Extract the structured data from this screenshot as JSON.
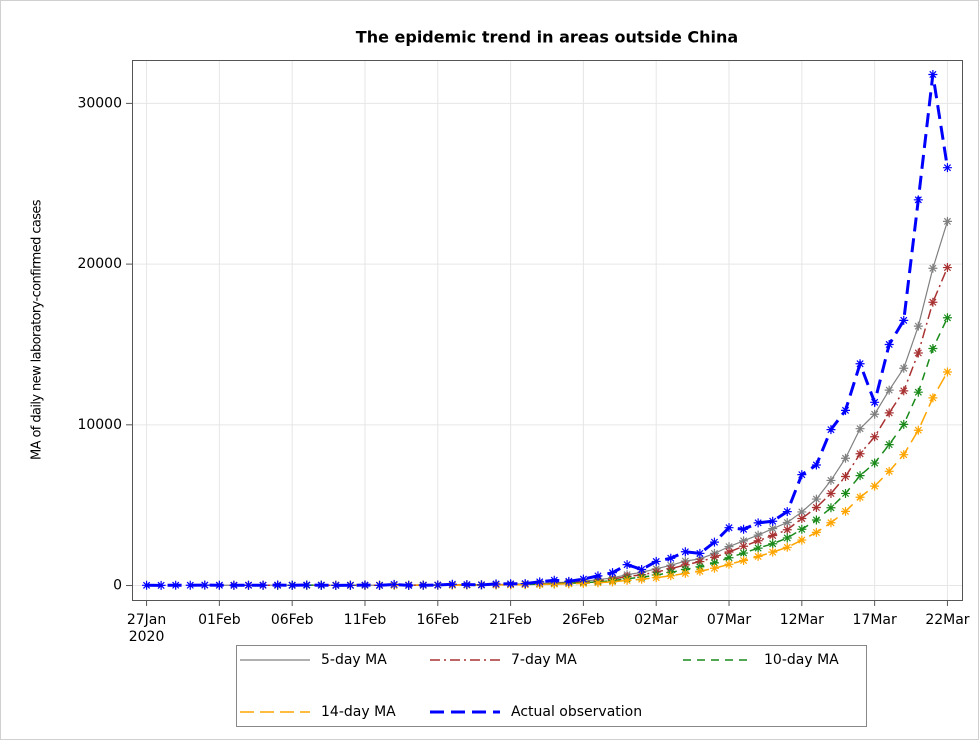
{
  "chart_data": {
    "type": "line",
    "title": "The epidemic trend in areas outside China",
    "y_label": "MA of daily new laboratory-confirmed cases",
    "x": [
      "2020-01-27",
      "2020-01-28",
      "2020-01-29",
      "2020-01-30",
      "2020-01-31",
      "2020-02-01",
      "2020-02-02",
      "2020-02-03",
      "2020-02-04",
      "2020-02-05",
      "2020-02-06",
      "2020-02-07",
      "2020-02-08",
      "2020-02-09",
      "2020-02-10",
      "2020-02-11",
      "2020-02-12",
      "2020-02-13",
      "2020-02-14",
      "2020-02-15",
      "2020-02-16",
      "2020-02-17",
      "2020-02-18",
      "2020-02-19",
      "2020-02-20",
      "2020-02-21",
      "2020-02-22",
      "2020-02-23",
      "2020-02-24",
      "2020-02-25",
      "2020-02-26",
      "2020-02-27",
      "2020-02-28",
      "2020-02-29",
      "2020-03-01",
      "2020-03-02",
      "2020-03-03",
      "2020-03-04",
      "2020-03-05",
      "2020-03-06",
      "2020-03-07",
      "2020-03-08",
      "2020-03-09",
      "2020-03-10",
      "2020-03-11",
      "2020-03-12",
      "2020-03-13",
      "2020-03-14",
      "2020-03-15",
      "2020-03-16",
      "2020-03-17",
      "2020-03-18",
      "2020-03-19",
      "2020-03-20",
      "2020-03-21",
      "2020-03-22"
    ],
    "xlim": [
      "2020-01-26",
      "2020-03-23"
    ],
    "xticks": [
      {
        "value": "2020-01-27",
        "label": [
          "27Jan",
          "2020"
        ]
      },
      {
        "value": "2020-02-01",
        "label": "01Feb"
      },
      {
        "value": "2020-02-06",
        "label": "06Feb"
      },
      {
        "value": "2020-02-11",
        "label": "11Feb"
      },
      {
        "value": "2020-02-16",
        "label": "16Feb"
      },
      {
        "value": "2020-02-21",
        "label": "21Feb"
      },
      {
        "value": "2020-02-26",
        "label": "26Feb"
      },
      {
        "value": "2020-03-02",
        "label": "02Mar"
      },
      {
        "value": "2020-03-07",
        "label": "07Mar"
      },
      {
        "value": "2020-03-12",
        "label": "12Mar"
      },
      {
        "value": "2020-03-17",
        "label": "17Mar"
      },
      {
        "value": "2020-03-22",
        "label": "22Mar"
      }
    ],
    "ylim": [
      -900,
      32700
    ],
    "yticks": [
      0,
      10000,
      20000,
      30000
    ],
    "grid": true,
    "legend": "bottom",
    "series": [
      {
        "name": "5-day MA",
        "color": "#808080",
        "line_style": "solid",
        "values": [
          null,
          null,
          null,
          null,
          19,
          20,
          21,
          21,
          21,
          21,
          20,
          23,
          23,
          21,
          18,
          21,
          17,
          27,
          27,
          28,
          28,
          42,
          40,
          46,
          62,
          78,
          86,
          120,
          178,
          210,
          268,
          364,
          478,
          672,
          820,
          1040,
          1260,
          1520,
          1660,
          2000,
          2420,
          2780,
          3140,
          3540,
          3920,
          4580,
          5380,
          6540,
          7920,
          9760,
          10660,
          12160,
          13520,
          16140,
          19740,
          22660
        ]
      },
      {
        "name": "7-day MA",
        "color": "#a83232",
        "line_style": "dashdot",
        "values": [
          null,
          null,
          null,
          null,
          null,
          null,
          19,
          19,
          21,
          22,
          21,
          21,
          21,
          21,
          20,
          21,
          19,
          26,
          24,
          24,
          26,
          36,
          40,
          44,
          49,
          63,
          77,
          106,
          141,
          170,
          221,
          293,
          391,
          560,
          670,
          837,
          1043,
          1286,
          1486,
          1757,
          2086,
          2443,
          2786,
          3114,
          3471,
          4171,
          4857,
          5729,
          6786,
          8200,
          9257,
          10743,
          12114,
          14471,
          17629,
          19786
        ]
      },
      {
        "name": "10-day MA",
        "color": "#1a8a1a",
        "line_style": "dashed",
        "values": [
          null,
          null,
          null,
          null,
          null,
          null,
          null,
          null,
          null,
          20,
          20,
          22,
          22,
          21,
          20,
          21,
          20,
          25,
          24,
          23,
          25,
          30,
          34,
          37,
          45,
          53,
          64,
          80,
          112,
          136,
          173,
          225,
          299,
          425,
          515,
          654,
          812,
          999,
          1166,
          1410,
          1730,
          2020,
          2330,
          2600,
          2960,
          3500,
          4080,
          4840,
          5730,
          6840,
          7620,
          8770,
          10030,
          12030,
          14750,
          16660
        ]
      },
      {
        "name": "14-day MA",
        "color": "#ffa500",
        "line_style": "longdash",
        "values": [
          null,
          null,
          null,
          null,
          null,
          null,
          null,
          null,
          null,
          null,
          null,
          null,
          null,
          20,
          20,
          21,
          20,
          24,
          23,
          23,
          24,
          28,
          31,
          31,
          38,
          43,
          50,
          66,
          89,
          105,
          133,
          171,
          227,
          319,
          388,
          489,
          606,
          754,
          889,
          1074,
          1323,
          1556,
          1811,
          2079,
          2379,
          2829,
          3307,
          3907,
          4614,
          5493,
          6186,
          7107,
          8143,
          9664,
          11679,
          13286
        ]
      },
      {
        "name": "Actual observation",
        "color": "#0000ff",
        "line_style": "bolddash",
        "values": [
          15,
          10,
          20,
          20,
          30,
          20,
          15,
          20,
          20,
          30,
          15,
          30,
          20,
          10,
          15,
          30,
          10,
          70,
          10,
          20,
          30,
          80,
          60,
          40,
          100,
          110,
          120,
          230,
          330,
          260,
          400,
          600,
          800,
          1300,
          1000,
          1500,
          1700,
          2100,
          2000,
          2700,
          3600,
          3500,
          3900,
          4000,
          4600,
          6900,
          7500,
          9700,
          10900,
          13800,
          11400,
          15000,
          16500,
          24000,
          31800,
          26000
        ]
      }
    ]
  }
}
